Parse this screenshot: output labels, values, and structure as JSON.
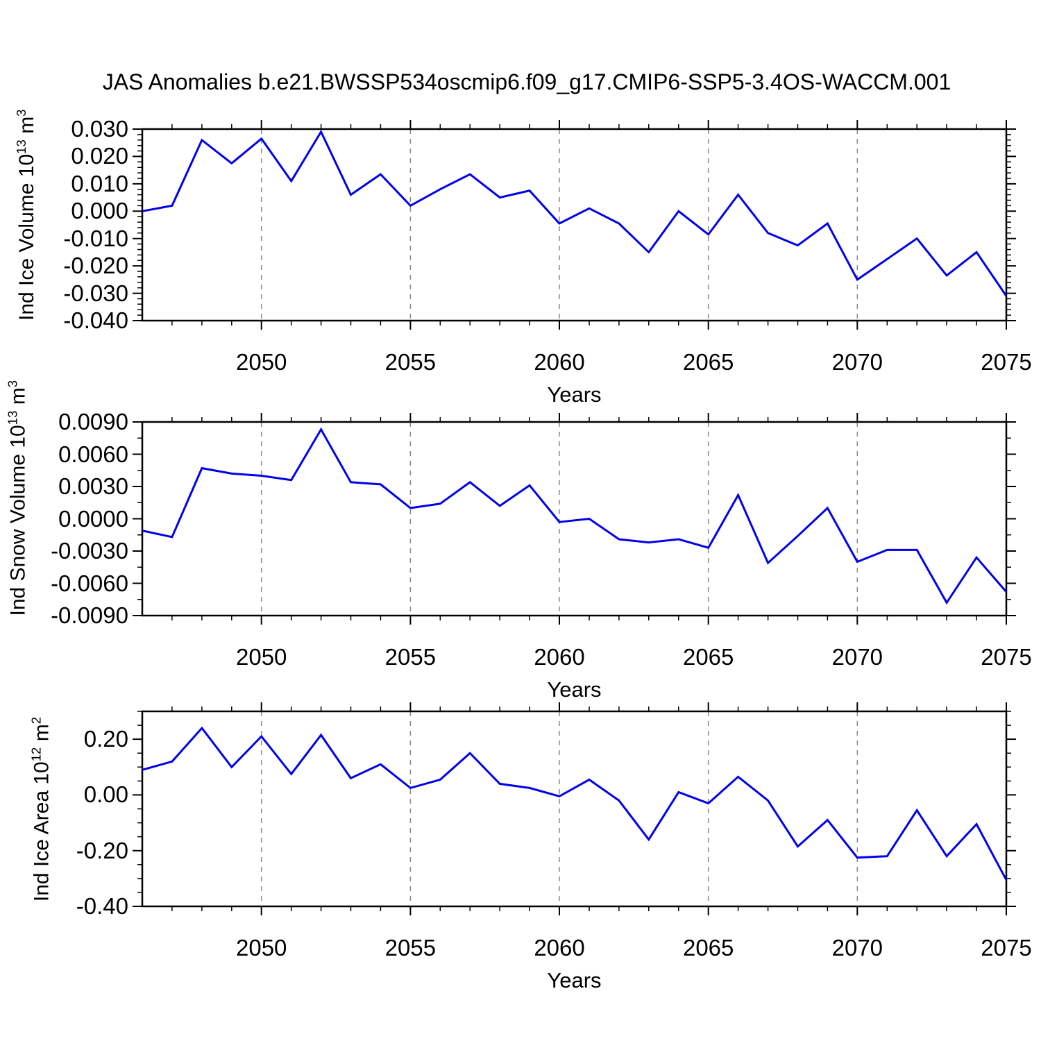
{
  "title": "JAS Anomalies b.e21.BWSSP534oscmip6.f09_g17.CMIP6-SSP5-3.4OS-WACCM.001",
  "colors": {
    "line": "#0000EE",
    "grid": "#8a8a8a",
    "frame": "#000000",
    "text": "#000000"
  },
  "x_axis": {
    "label": "Years",
    "lim": [
      2046,
      2075
    ],
    "major_ticks": [
      2050,
      2055,
      2060,
      2065,
      2070,
      2075
    ],
    "minor_step": 1,
    "grid_years": [
      2050,
      2055,
      2060,
      2065,
      2070
    ]
  },
  "panels": [
    {
      "name": "ice-volume",
      "ylabel_parts": [
        "Ind Ice Volume 10",
        "13",
        " m",
        "3"
      ],
      "ylim": [
        -0.04,
        0.03
      ],
      "y_major_values": [
        0.03,
        0.02,
        0.01,
        0.0,
        -0.01,
        -0.02,
        -0.03,
        -0.04
      ],
      "y_major_labels": [
        "0.030",
        "0.020",
        "0.010",
        "0.000",
        "-0.010",
        "-0.020",
        "-0.030",
        "-0.040"
      ],
      "y_minor_step": 0.002
    },
    {
      "name": "snow-volume",
      "ylabel_parts": [
        "Ind Snow Volume 10",
        "13",
        " m",
        "3"
      ],
      "ylim": [
        -0.009,
        0.009
      ],
      "y_major_values": [
        0.009,
        0.006,
        0.003,
        0.0,
        -0.003,
        -0.006,
        -0.009
      ],
      "y_major_labels": [
        "0.0090",
        "0.0060",
        "0.0030",
        "0.0000",
        "-0.0030",
        "-0.0060",
        "-0.0090"
      ],
      "y_minor_step": 0.0015
    },
    {
      "name": "ice-area",
      "ylabel_parts": [
        "Ind Ice Area 10",
        "12",
        " m",
        "2"
      ],
      "ylim": [
        -0.4,
        0.3
      ],
      "y_major_values": [
        0.2,
        0.0,
        -0.2,
        -0.4
      ],
      "y_major_labels": [
        "0.20",
        "0.00",
        "-0.20",
        "-0.40"
      ],
      "y_minor_step": 0.05
    }
  ],
  "chart_data": [
    {
      "type": "line",
      "title": "JAS Anomalies b.e21.BWSSP534oscmip6.f09_g17.CMIP6-SSP5-3.4OS-WACCM.001",
      "xlabel": "Years",
      "ylabel": "Ind Ice Volume 10^13 m^3",
      "xlim": [
        2046,
        2075
      ],
      "ylim": [
        -0.04,
        0.03
      ],
      "legend": "none",
      "grid": "vertical-dashed",
      "x": [
        2046,
        2047,
        2048,
        2049,
        2050,
        2051,
        2052,
        2053,
        2054,
        2055,
        2056,
        2057,
        2058,
        2059,
        2060,
        2061,
        2062,
        2063,
        2064,
        2065,
        2066,
        2067,
        2068,
        2069,
        2070,
        2071,
        2072,
        2073,
        2074,
        2075
      ],
      "values": [
        0.0,
        0.002,
        0.026,
        0.0175,
        0.0265,
        0.011,
        0.029,
        0.006,
        0.0135,
        0.002,
        0.008,
        0.0135,
        0.005,
        0.0075,
        -0.0045,
        0.001,
        -0.0045,
        -0.015,
        0.0,
        -0.0085,
        0.006,
        -0.008,
        -0.0125,
        -0.0045,
        -0.025,
        -0.0175,
        -0.01,
        -0.0235,
        -0.015,
        -0.031
      ]
    },
    {
      "type": "line",
      "title": "",
      "xlabel": "Years",
      "ylabel": "Ind Snow Volume 10^13 m^3",
      "xlim": [
        2046,
        2075
      ],
      "ylim": [
        -0.009,
        0.009
      ],
      "legend": "none",
      "grid": "vertical-dashed",
      "x": [
        2046,
        2047,
        2048,
        2049,
        2050,
        2051,
        2052,
        2053,
        2054,
        2055,
        2056,
        2057,
        2058,
        2059,
        2060,
        2061,
        2062,
        2063,
        2064,
        2065,
        2066,
        2067,
        2068,
        2069,
        2070,
        2071,
        2072,
        2073,
        2074,
        2075
      ],
      "values": [
        -0.0011,
        -0.0017,
        0.0047,
        0.0042,
        0.004,
        0.0036,
        0.0083,
        0.0034,
        0.0032,
        0.001,
        0.0014,
        0.0034,
        0.0012,
        0.0031,
        -0.0003,
        0.0,
        -0.0019,
        -0.0022,
        -0.0019,
        -0.0027,
        0.0022,
        -0.0041,
        -0.0016,
        0.001,
        -0.004,
        -0.0029,
        -0.0029,
        -0.0078,
        -0.0036,
        -0.0068
      ]
    },
    {
      "type": "line",
      "title": "",
      "xlabel": "Years",
      "ylabel": "Ind Ice Area 10^12 m^2",
      "xlim": [
        2046,
        2075
      ],
      "ylim": [
        -0.4,
        0.3
      ],
      "legend": "none",
      "grid": "vertical-dashed",
      "x": [
        2046,
        2047,
        2048,
        2049,
        2050,
        2051,
        2052,
        2053,
        2054,
        2055,
        2056,
        2057,
        2058,
        2059,
        2060,
        2061,
        2062,
        2063,
        2064,
        2065,
        2066,
        2067,
        2068,
        2069,
        2070,
        2071,
        2072,
        2073,
        2074,
        2075
      ],
      "values": [
        0.09,
        0.12,
        0.24,
        0.1,
        0.21,
        0.075,
        0.215,
        0.06,
        0.11,
        0.025,
        0.055,
        0.15,
        0.04,
        0.025,
        -0.005,
        0.055,
        -0.02,
        -0.16,
        0.01,
        -0.03,
        0.065,
        -0.02,
        -0.185,
        -0.09,
        -0.225,
        -0.22,
        -0.055,
        -0.22,
        -0.105,
        -0.305
      ]
    }
  ]
}
